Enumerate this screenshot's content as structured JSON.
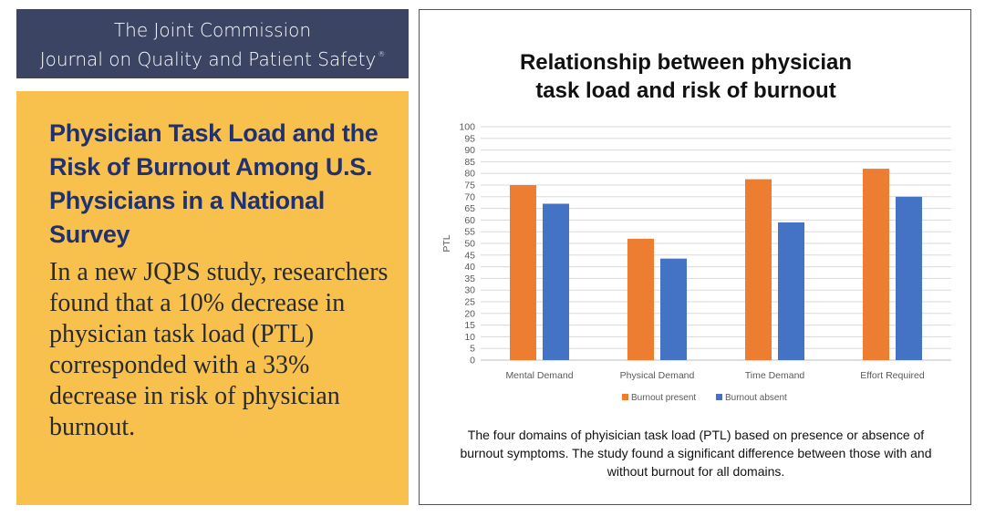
{
  "header": {
    "line1": "The Joint Commission",
    "line2": "Journal on Quality and Patient Safety",
    "mark": "®"
  },
  "story": {
    "headline": "Physician Task Load and the Risk of Burnout Among U.S. Physicians in a National Survey",
    "body": "In a new JQPS study, researchers found that a 10% decrease in physician task load (PTL) corresponded with a 33% decrease in risk of physician burnout."
  },
  "chart_title": {
    "line1": "Relationship between physician",
    "line2": "task load and risk of burnout"
  },
  "caption": "The four domains of phyisician task load (PTL) based on presence or absence of burnout symptoms. The study found a significant difference between those with and without burnout for all domains.",
  "colors": {
    "header_bg": "#3b4463",
    "panel_bg": "#f8c04d",
    "headline": "#1f3170",
    "burnout_present": "#ed7d31",
    "burnout_absent": "#4472c4"
  },
  "chart_data": {
    "type": "bar",
    "title": "Relationship between physician task load and risk of burnout",
    "categories": [
      "Mental Demand",
      "Physical Demand",
      "Time Demand",
      "Effort Required"
    ],
    "series": [
      {
        "name": "Burnout present",
        "values": [
          75,
          52,
          77.5,
          82
        ],
        "color": "#ed7d31"
      },
      {
        "name": "Burnout absent",
        "values": [
          67,
          43.5,
          59,
          70
        ],
        "color": "#4472c4"
      }
    ],
    "xlabel": "",
    "ylabel": "PTL",
    "ylim": [
      0,
      100
    ],
    "yticks": [
      0,
      5,
      10,
      15,
      20,
      25,
      30,
      35,
      40,
      45,
      50,
      55,
      60,
      65,
      70,
      75,
      80,
      85,
      90,
      95,
      100
    ],
    "grid": true,
    "legend": "bottom"
  }
}
